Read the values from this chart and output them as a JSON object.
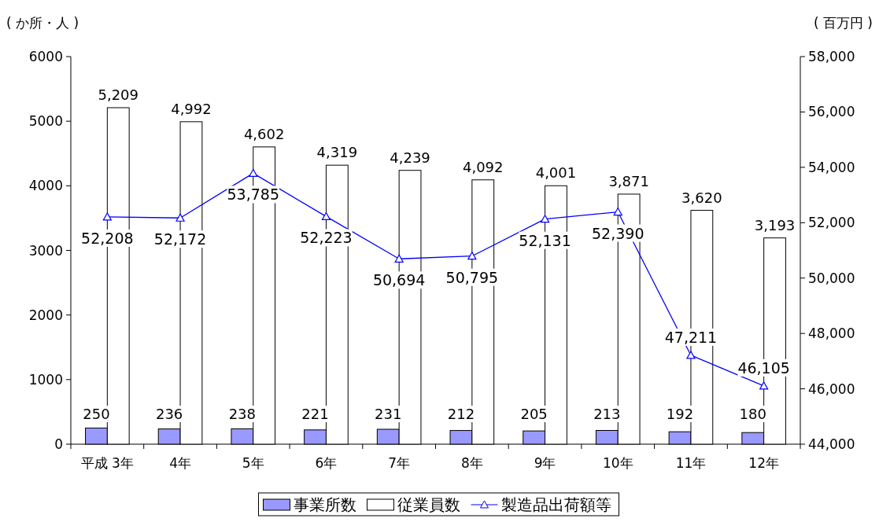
{
  "chart_data": {
    "type": "bar",
    "ylabel": "( か所・人 )",
    "y2label": "( 百万円 )",
    "categories": [
      "平成 3年",
      "4年",
      "5年",
      "6年",
      "7年",
      "8年",
      "9年",
      "10年",
      "11年",
      "12年"
    ],
    "ylim": [
      0,
      6000
    ],
    "yticks": [
      0,
      1000,
      2000,
      3000,
      4000,
      5000,
      6000
    ],
    "y2lim": [
      44000,
      58000
    ],
    "y2ticks": [
      {
        "value": 44000,
        "label": "44,000"
      },
      {
        "value": 46000,
        "label": "46,000"
      },
      {
        "value": 48000,
        "label": "48,000"
      },
      {
        "value": 50000,
        "label": "50,000"
      },
      {
        "value": 52000,
        "label": "52,000"
      },
      {
        "value": 54000,
        "label": "54,000"
      },
      {
        "value": 56000,
        "label": "56,000"
      },
      {
        "value": 58000,
        "label": "58,000"
      }
    ],
    "legend": "bottom",
    "grid": false,
    "series": [
      {
        "name": "事業所数",
        "color": "#9999ff",
        "values": [
          250,
          236,
          238,
          221,
          231,
          212,
          205,
          213,
          192,
          180
        ],
        "value_labels": [
          "250",
          "236",
          "238",
          "221",
          "231",
          "212",
          "205",
          "213",
          "192",
          "180"
        ]
      },
      {
        "name": "従業員数",
        "color": "#ffffff",
        "values": [
          5209,
          4992,
          4602,
          4319,
          4239,
          4092,
          4001,
          3871,
          3620,
          3193
        ],
        "value_labels": [
          "5,209",
          "4,992",
          "4,602",
          "4,319",
          "4,239",
          "4,092",
          "4,001",
          "3,871",
          "3,620",
          "3,193"
        ]
      },
      {
        "name": "製造品出荷額等",
        "type": "line",
        "axis": "y2",
        "color": "#0000ff",
        "marker": "triangle",
        "values": [
          52208,
          52172,
          53785,
          52223,
          50694,
          50795,
          52131,
          52390,
          47211,
          46105
        ],
        "value_labels": [
          "52,208",
          "52,172",
          "53,785",
          "52,223",
          "50,694",
          "50,795",
          "52,131",
          "52,390",
          "47,211",
          "46,105"
        ]
      }
    ]
  }
}
